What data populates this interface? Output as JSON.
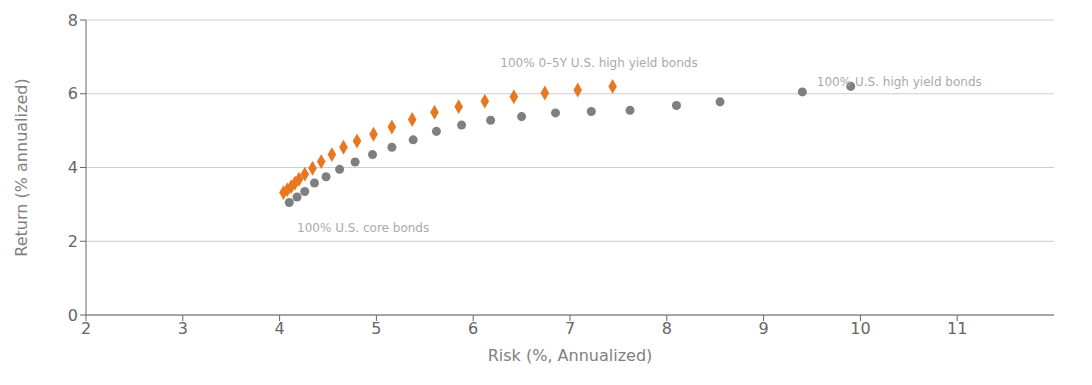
{
  "chart_data": {
    "type": "scatter",
    "xlabel": "Risk (%, Annualized)",
    "ylabel": "Return (% annualized)",
    "xlim": [
      2,
      12
    ],
    "ylim": [
      0,
      8
    ],
    "xticks": [
      2,
      3,
      4,
      5,
      6,
      7,
      8,
      9,
      10,
      11
    ],
    "yticks": [
      0,
      2,
      4,
      6,
      8
    ],
    "grid": true,
    "series": [
      {
        "color": "#7f7f7f",
        "marker": "circle",
        "x": [
          4.1,
          4.18,
          4.26,
          4.36,
          4.48,
          4.62,
          4.78,
          4.96,
          5.16,
          5.38,
          5.62,
          5.88,
          6.18,
          6.5,
          6.85,
          7.22,
          7.62,
          8.1,
          8.55,
          9.4,
          9.9
        ],
        "values": [
          3.05,
          3.2,
          3.35,
          3.58,
          3.75,
          3.95,
          4.15,
          4.35,
          4.55,
          4.75,
          4.98,
          5.15,
          5.28,
          5.38,
          5.48,
          5.52,
          5.55,
          5.68,
          5.78,
          6.05,
          6.2
        ]
      },
      {
        "color": "#E87722",
        "marker": "diamond",
        "x": [
          4.04,
          4.08,
          4.12,
          4.16,
          4.2,
          4.26,
          4.34,
          4.43,
          4.54,
          4.66,
          4.8,
          4.97,
          5.16,
          5.37,
          5.6,
          5.85,
          6.12,
          6.42,
          6.74,
          7.08,
          7.44
        ],
        "values": [
          3.32,
          3.4,
          3.48,
          3.58,
          3.68,
          3.82,
          3.98,
          4.16,
          4.35,
          4.55,
          4.72,
          4.9,
          5.1,
          5.3,
          5.5,
          5.65,
          5.8,
          5.92,
          6.02,
          6.1,
          6.2
        ]
      }
    ],
    "annotations": [
      {
        "text": "100% U.S. core bonds",
        "x": 4.18,
        "y": 2.48,
        "color": "#aaaaaa"
      },
      {
        "text": "100% 0–5Y U.S. high yield bonds",
        "x": 6.28,
        "y": 6.72,
        "color": "#aaaaaa"
      },
      {
        "text": "100% U.S. high yield bonds",
        "x": 9.55,
        "y": 6.45,
        "color": "#aaaaaa"
      }
    ]
  }
}
